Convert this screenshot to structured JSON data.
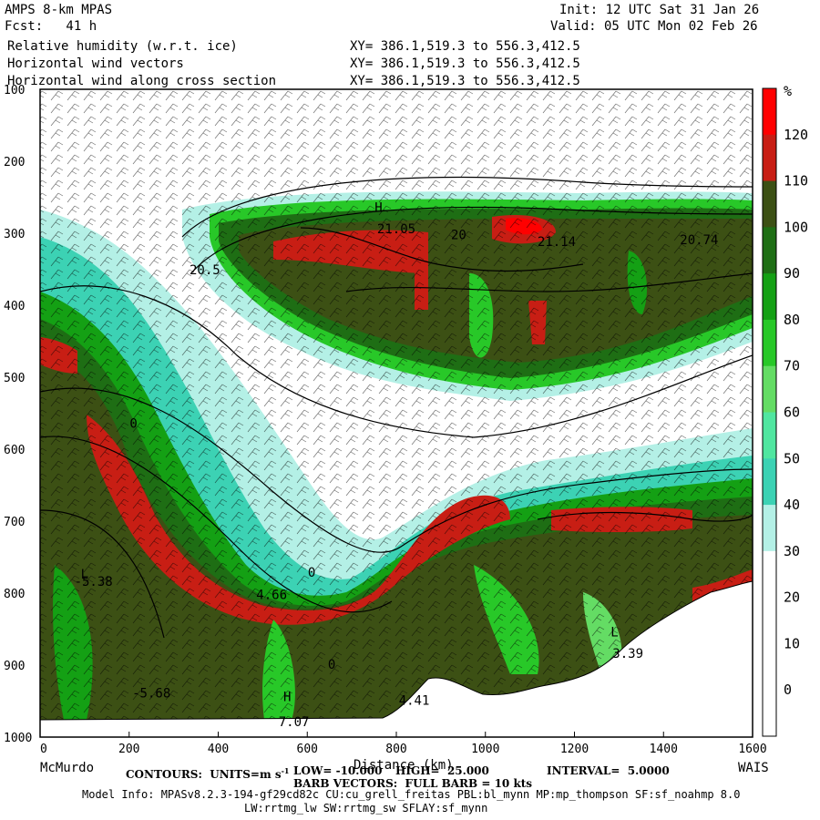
{
  "header": {
    "model": "AMPS 8-km MPAS",
    "init": "Init: 12 UTC Sat 31 Jan 26",
    "fcst": "Fcst:   41 h",
    "valid": "Valid: 05 UTC Mon 02 Feb 26",
    "fields": [
      {
        "name": "Relative humidity (w.r.t. ice)",
        "xy": "XY= 386.1,519.3 to 556.3,412.5"
      },
      {
        "name": "Horizontal wind vectors",
        "xy": "XY= 386.1,519.3 to 556.3,412.5"
      },
      {
        "name": "Horizontal wind along cross section",
        "xy": "XY= 386.1,519.3 to 556.3,412.5"
      }
    ]
  },
  "footer": {
    "left_end": "McMurdo",
    "right_end": "WAIS",
    "x_title": "Distance (km)",
    "contours": "CONTOURS:  UNITS=m s",
    "contours_sup": "-1",
    "low": "LOW= -10.000",
    "high": "HIGH=  25.000",
    "interval": "INTERVAL=  5.0000",
    "barbs": "BARB VECTORS:  FULL BARB = 10 kts",
    "model_info_1": "Model Info: MPASv8.2.3-194-gf29cd82c CU:cu_grell_freitas PBL:bl_mynn MP:mp_thompson SF:sf_noahmp 8.0",
    "model_info_2": "LW:rrtmg_lw SW:rrtmg_sw SFLAY:sf_mynn"
  },
  "colorbar": {
    "unit": "%",
    "levels": [
      "120",
      "110",
      "100",
      "90",
      "80",
      "70",
      "60",
      "50",
      "40",
      "30",
      "20",
      "10",
      "0"
    ],
    "colors": [
      "#ff0000",
      "#c81e14",
      "#3c5014",
      "#1e6e14",
      "#14a014",
      "#28c828",
      "#64dc64",
      "#50e6a0",
      "#3cd2b4",
      "#b4f0e6",
      "#ffffff",
      "#ffffff",
      "#ffffff",
      "#ffffff"
    ]
  },
  "chart_data": {
    "type": "heatmap",
    "title": "Relative humidity (w.r.t. ice)",
    "xlabel": "Distance (km)",
    "ylabel": "",
    "x_ticks": [
      0,
      200,
      400,
      600,
      800,
      1000,
      1200,
      1400,
      1600
    ],
    "y_ticks": [
      100,
      200,
      300,
      400,
      500,
      600,
      700,
      800,
      900,
      1000
    ],
    "xlim": [
      0,
      1600
    ],
    "ylim": [
      1000,
      100
    ],
    "contour_labels": [
      {
        "text": "21.05",
        "x": 800,
        "p": 300
      },
      {
        "text": "20",
        "x": 940,
        "p": 308
      },
      {
        "text": "21.14",
        "x": 1160,
        "p": 318
      },
      {
        "text": "20.74",
        "x": 1480,
        "p": 315
      },
      {
        "text": "20.5",
        "x": 370,
        "p": 357
      },
      {
        "text": "H",
        "x": 760,
        "p": 270
      },
      {
        "text": "0",
        "x": 210,
        "p": 570
      },
      {
        "text": "-5.38",
        "x": 120,
        "p": 790
      },
      {
        "text": "4.66",
        "x": 520,
        "p": 808
      },
      {
        "text": "0",
        "x": 610,
        "p": 777
      },
      {
        "text": "0",
        "x": 655,
        "p": 905
      },
      {
        "text": "-5.68",
        "x": 250,
        "p": 945
      },
      {
        "text": "7.07",
        "x": 570,
        "p": 985
      },
      {
        "text": "4.41",
        "x": 840,
        "p": 955
      },
      {
        "text": "3.39",
        "x": 1320,
        "p": 890
      },
      {
        "text": "L",
        "x": 100,
        "p": 780
      },
      {
        "text": "L",
        "x": 1290,
        "p": 860
      },
      {
        "text": "H",
        "x": 555,
        "p": 950
      }
    ]
  }
}
